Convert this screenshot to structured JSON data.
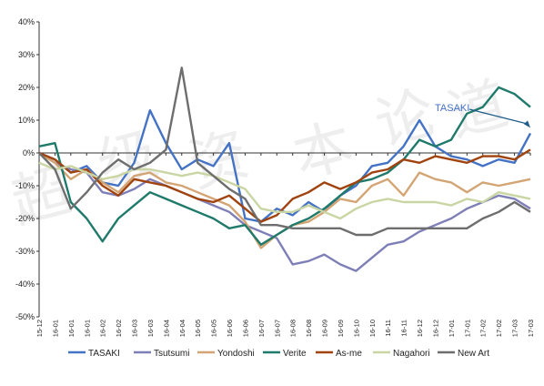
{
  "chart_data": {
    "type": "line",
    "title": "",
    "xlabel": "",
    "ylabel": "",
    "ylim": [
      -50,
      40
    ],
    "y_unit": "%",
    "yticks": [
      "40%",
      "30%",
      "20%",
      "10%",
      "0%",
      "-10%",
      "-20%",
      "-30%",
      "-40%",
      "-50%"
    ],
    "x_tick_labels": [
      "15-12",
      "16-01",
      "16-01",
      "16-01",
      "16-02",
      "16-02",
      "16-03",
      "16-03",
      "16-04",
      "16-04",
      "16-05",
      "16-05",
      "16-06",
      "16-06",
      "16-07",
      "16-07",
      "16-08",
      "16-08",
      "16-09",
      "16-09",
      "16-10",
      "16-10",
      "16-11",
      "16-11",
      "16-12",
      "16-12",
      "17-01",
      "17-01",
      "17-02",
      "17-02",
      "17-03",
      "17-03"
    ],
    "grid": false,
    "legend_position": "bottom",
    "annotation": {
      "text": "TASAKI",
      "target_series": "TASAKI",
      "target_x": 31,
      "target_y": 6
    },
    "watermark_glyphs": [
      "超",
      "级",
      "资",
      "本",
      "论",
      "道"
    ],
    "series": [
      {
        "name": "TASAKI",
        "color": "#4472C4",
        "x": [
          0,
          1,
          2,
          3,
          4,
          5,
          6,
          7,
          8,
          9,
          10,
          11,
          12,
          13,
          14,
          15,
          16,
          17,
          18,
          19,
          20,
          21,
          22,
          23,
          24,
          25,
          26,
          27,
          28,
          29,
          30,
          31
        ],
        "y": [
          0,
          -2,
          -6,
          -4,
          -9,
          -10,
          -3,
          13,
          3,
          -5,
          -2,
          -4,
          3,
          -20,
          -21,
          -17,
          -19,
          -15,
          -18,
          -13,
          -10,
          -4,
          -3,
          2,
          10,
          2,
          -1,
          -2,
          -4,
          -2,
          -3,
          6
        ]
      },
      {
        "name": "Tsutsumi",
        "color": "#7F7FB8",
        "x": [
          0,
          1,
          2,
          3,
          4,
          5,
          6,
          7,
          8,
          9,
          10,
          11,
          12,
          13,
          14,
          15,
          16,
          17,
          18,
          19,
          20,
          21,
          22,
          23,
          24,
          25,
          26,
          27,
          28,
          29,
          30,
          31
        ],
        "y": [
          0,
          -3,
          -5,
          -6,
          -12,
          -13,
          -11,
          -8,
          -10,
          -12,
          -14,
          -16,
          -18,
          -22,
          -24,
          -26,
          -34,
          -33,
          -31,
          -34,
          -36,
          -32,
          -28,
          -27,
          -24,
          -22,
          -20,
          -17,
          -15,
          -13,
          -14,
          -17
        ]
      },
      {
        "name": "Yondoshi",
        "color": "#D4A574",
        "x": [
          0,
          1,
          2,
          3,
          4,
          5,
          6,
          7,
          8,
          9,
          10,
          11,
          12,
          13,
          14,
          15,
          16,
          17,
          18,
          19,
          20,
          21,
          22,
          23,
          24,
          25,
          26,
          27,
          28,
          29,
          30,
          31
        ],
        "y": [
          0,
          -3,
          -8,
          -5,
          -9,
          -12,
          -7,
          -6,
          -9,
          -10,
          -12,
          -14,
          -16,
          -21,
          -29,
          -25,
          -22,
          -21,
          -18,
          -14,
          -15,
          -10,
          -8,
          -13,
          -6,
          -8,
          -9,
          -12,
          -9,
          -10,
          -9,
          -8
        ]
      },
      {
        "name": "Verite",
        "color": "#1F7A6B",
        "x": [
          0,
          1,
          2,
          3,
          4,
          5,
          6,
          7,
          8,
          9,
          10,
          11,
          12,
          13,
          14,
          15,
          16,
          17,
          18,
          19,
          20,
          21,
          22,
          23,
          24,
          25,
          26,
          27,
          28,
          29,
          30,
          31
        ],
        "y": [
          2,
          3,
          -15,
          -20,
          -27,
          -20,
          -16,
          -12,
          -14,
          -16,
          -18,
          -20,
          -23,
          -22,
          -28,
          -25,
          -22,
          -20,
          -17,
          -13,
          -9,
          -8,
          -6,
          -2,
          4,
          2,
          4,
          12,
          14,
          20,
          18,
          14
        ]
      },
      {
        "name": "As-me",
        "color": "#A0430E",
        "x": [
          0,
          1,
          2,
          3,
          4,
          5,
          6,
          7,
          8,
          9,
          10,
          11,
          12,
          13,
          14,
          15,
          16,
          17,
          18,
          19,
          20,
          21,
          22,
          23,
          24,
          25,
          26,
          27,
          28,
          29,
          30,
          31
        ],
        "y": [
          0,
          -2,
          -6,
          -5,
          -10,
          -13,
          -8,
          -9,
          -10,
          -12,
          -14,
          -15,
          -13,
          -17,
          -21,
          -19,
          -14,
          -12,
          -9,
          -11,
          -9,
          -6,
          -5,
          -2,
          -3,
          -1,
          -2,
          -3,
          -1,
          -1,
          -2,
          1
        ]
      },
      {
        "name": "Nagahori",
        "color": "#C9D6A3",
        "x": [
          0,
          1,
          2,
          3,
          4,
          5,
          6,
          7,
          8,
          9,
          10,
          11,
          12,
          13,
          14,
          15,
          16,
          17,
          18,
          19,
          20,
          21,
          22,
          23,
          24,
          25,
          26,
          27,
          28,
          29,
          30,
          31
        ],
        "y": [
          -3,
          -5,
          -4,
          -6,
          -8,
          -7,
          -5,
          -5,
          -6,
          -7,
          -6,
          -7,
          -9,
          -11,
          -17,
          -18,
          -18,
          -16,
          -18,
          -20,
          -17,
          -15,
          -14,
          -15,
          -15,
          -15,
          -16,
          -14,
          -15,
          -12,
          -13,
          -14
        ]
      },
      {
        "name": "New Art",
        "color": "#6E6E6E",
        "x": [
          0,
          1,
          2,
          3,
          4,
          5,
          6,
          7,
          8,
          9,
          10,
          11,
          12,
          13,
          14,
          15,
          16,
          17,
          18,
          19,
          20,
          21,
          22,
          23,
          24,
          25,
          26,
          27,
          28,
          29,
          30,
          31
        ],
        "y": [
          0,
          -5,
          -17,
          -12,
          -6,
          -2,
          -5,
          -3,
          1,
          26,
          -3,
          -7,
          -11,
          -14,
          -22,
          -22,
          -23,
          -23,
          -23,
          -23,
          -25,
          -25,
          -23,
          -23,
          -23,
          -23,
          -23,
          -23,
          -20,
          -18,
          -15,
          -18
        ]
      }
    ]
  }
}
